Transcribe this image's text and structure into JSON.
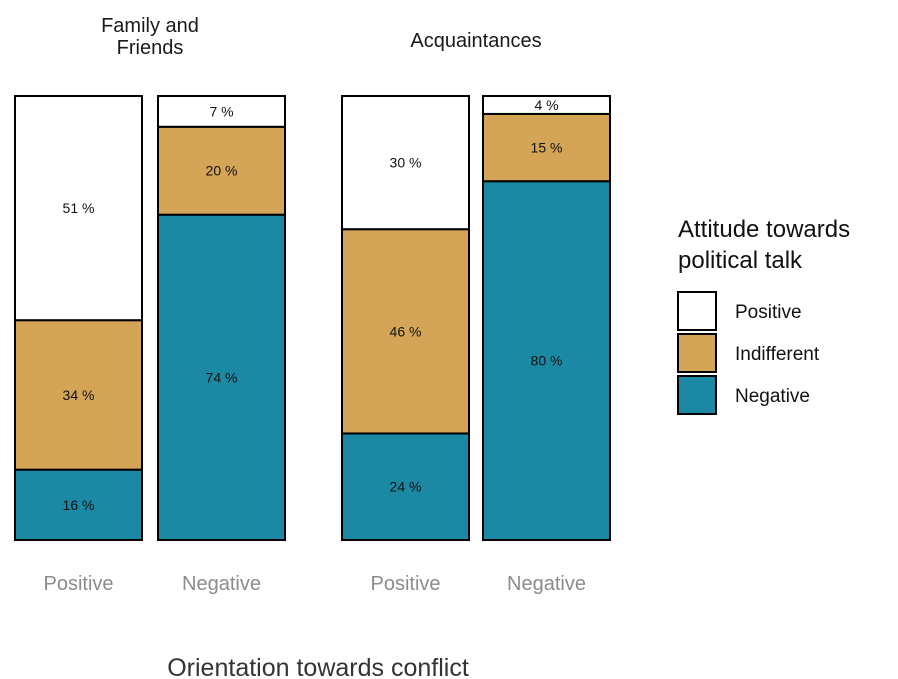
{
  "chart_data": {
    "type": "bar",
    "stacked": true,
    "normalized": true,
    "panels": [
      {
        "title": "Family and\nFriends",
        "categories": [
          "Positive",
          "Negative"
        ],
        "series": [
          {
            "name": "Negative",
            "values": [
              16,
              74
            ]
          },
          {
            "name": "Indifferent",
            "values": [
              34,
              20
            ]
          },
          {
            "name": "Positive",
            "values": [
              51,
              7
            ]
          }
        ]
      },
      {
        "title": "Acquaintances",
        "categories": [
          "Positive",
          "Negative"
        ],
        "series": [
          {
            "name": "Negative",
            "values": [
              24,
              80
            ]
          },
          {
            "name": "Indifferent",
            "values": [
              46,
              15
            ]
          },
          {
            "name": "Positive",
            "values": [
              30,
              4
            ]
          }
        ]
      }
    ],
    "xlabel": "Orientation towards conflict",
    "ylabel": "",
    "label_suffix": " %",
    "legend": {
      "title": "Attitude towards\npolitical talk",
      "position": "right",
      "entries": [
        "Positive",
        "Indifferent",
        "Negative"
      ]
    },
    "colors": {
      "Positive": "#ffffff",
      "Indifferent": "#d4a556",
      "Negative": "#1c89a4"
    },
    "grid": false
  }
}
